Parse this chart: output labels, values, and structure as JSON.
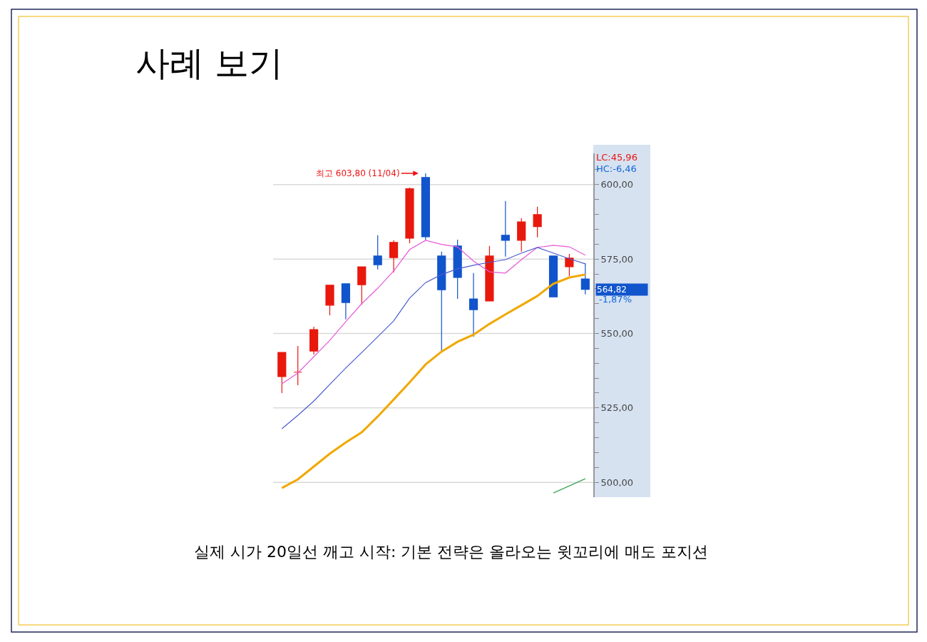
{
  "chart_data": {
    "type": "candlestick",
    "title": "사례 보기",
    "categories": [
      null,
      null,
      null,
      null,
      null,
      null,
      null,
      null,
      null,
      null,
      null,
      null,
      null,
      null,
      null,
      null,
      null,
      null,
      null,
      null
    ],
    "ohlc": [
      [
        535.5,
        543.6,
        530.0,
        543.6
      ],
      [
        537.0,
        545.8,
        532.6,
        537.0
      ],
      [
        544.1,
        552.3,
        542.9,
        551.3
      ],
      [
        559.5,
        566.2,
        556.1,
        566.2
      ],
      [
        566.7,
        566.7,
        554.7,
        560.4
      ],
      [
        566.4,
        572.4,
        559.7,
        572.4
      ],
      [
        576.0,
        583.0,
        571.5,
        573.1
      ],
      [
        575.5,
        581.3,
        570.5,
        580.6
      ],
      [
        582.0,
        599.0,
        580.3,
        598.6
      ],
      [
        602.4,
        603.8,
        581.3,
        582.5
      ],
      [
        576.0,
        577.5,
        543.9,
        564.7
      ],
      [
        579.4,
        581.5,
        561.6,
        568.8
      ],
      [
        561.6,
        570.3,
        548.9,
        558.0
      ],
      [
        560.9,
        579.4,
        560.9,
        576.0
      ],
      [
        583.0,
        594.5,
        575.8,
        581.3
      ],
      [
        581.3,
        588.7,
        577.5,
        587.5
      ],
      [
        585.9,
        592.6,
        582.3,
        589.9
      ],
      [
        576.0,
        576.0,
        562.3,
        562.3
      ],
      [
        572.4,
        576.7,
        569.3,
        575.3
      ],
      [
        568.3,
        573.6,
        563.1,
        564.82
      ]
    ],
    "colors": [
      "#e8180c",
      "#e8180c",
      "#e8180c",
      "#e8180c",
      "#1155cc",
      "#e8180c",
      "#1155cc",
      "#e8180c",
      "#e8180c",
      "#1155cc",
      "#1155cc",
      "#1155cc",
      "#1155cc",
      "#e8180c",
      "#1155cc",
      "#e8180c",
      "#e8180c",
      "#1155cc",
      "#e8180c",
      "#1155cc"
    ],
    "series": [
      {
        "type": "line",
        "color": "#e659d9",
        "values": [
          533.1,
          536.7,
          542.2,
          547.7,
          554.0,
          560.0,
          565.2,
          571.0,
          578.2,
          581.3,
          579.9,
          579.1,
          574.3,
          570.7,
          570.3,
          574.8,
          578.9,
          579.6,
          579.1,
          576.3
        ]
      },
      {
        "type": "line",
        "color": "#4a5bd0",
        "values": [
          518.0,
          522.5,
          527.3,
          532.9,
          538.4,
          543.6,
          548.9,
          554.2,
          561.9,
          567.1,
          569.8,
          571.7,
          572.9,
          573.9,
          574.8,
          577.0,
          578.9,
          577.0,
          575.1,
          573.4
        ]
      },
      {
        "type": "line",
        "color": "#f0a800",
        "values": [
          498.1,
          501.0,
          505.3,
          509.6,
          513.4,
          516.8,
          522.1,
          527.8,
          533.6,
          539.6,
          543.9,
          547.2,
          549.6,
          553.2,
          556.4,
          559.5,
          562.6,
          566.7,
          568.8,
          569.8
        ]
      },
      {
        "type": "line",
        "color": "#3aa655",
        "values": [
          null,
          null,
          null,
          null,
          null,
          null,
          null,
          null,
          null,
          null,
          null,
          null,
          null,
          null,
          null,
          null,
          null,
          496.4,
          498.8,
          501.2
        ]
      }
    ],
    "ylim": [
      495,
      610.5
    ],
    "yticks": [
      {
        "value": 500,
        "label": "500,00"
      },
      {
        "value": 505,
        "label": null
      },
      {
        "value": 510,
        "label": null
      },
      {
        "value": 515,
        "label": null
      },
      {
        "value": 520,
        "label": null
      },
      {
        "value": 525,
        "label": "525,00"
      },
      {
        "value": 530,
        "label": null
      },
      {
        "value": 535,
        "label": null
      },
      {
        "value": 540,
        "label": null
      },
      {
        "value": 545,
        "label": null
      },
      {
        "value": 550,
        "label": "550,00"
      },
      {
        "value": 555,
        "label": null
      },
      {
        "value": 560,
        "label": null
      },
      {
        "value": 565,
        "label": null
      },
      {
        "value": 570,
        "label": null
      },
      {
        "value": 575,
        "label": "575,00"
      },
      {
        "value": 580,
        "label": null
      },
      {
        "value": 585,
        "label": null
      },
      {
        "value": 590,
        "label": null
      },
      {
        "value": 595,
        "label": null
      },
      {
        "value": 600,
        "label": "600,00"
      },
      {
        "value": 605,
        "label": null
      }
    ],
    "grid": "y",
    "annotations": [
      "최고 603,80 (11/04)",
      "LC:45,96",
      "HC:-6,46",
      "564,82",
      "-1,87%",
      "실제 시가 20일선 깨고 시작: 기본 전략은 올라오는 윗꼬리에 매도 포지션"
    ]
  }
}
